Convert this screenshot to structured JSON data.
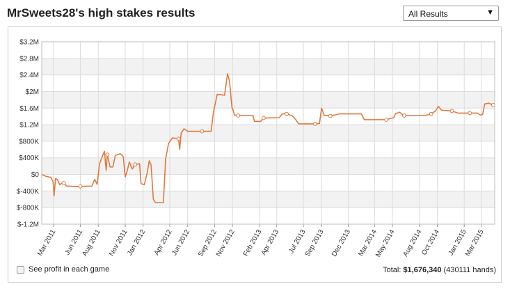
{
  "header": {
    "title": "MrSweets28's high stakes results"
  },
  "filter": {
    "selected": "All Results",
    "arrow_icon": "triangle-down-icon"
  },
  "footer": {
    "checkbox_label": "See profit in each game",
    "total_label": "Total:",
    "total_value": "$1,676,340",
    "hands": "(430111 hands)"
  },
  "colors": {
    "line": "#e07a3f",
    "grid": "#dcdcdc",
    "band": "#f2f2f2"
  },
  "chart_data": {
    "type": "line",
    "title": "",
    "xlabel": "",
    "ylabel": "",
    "ylim": [
      -1200000,
      3200000
    ],
    "yticks": [
      {
        "value": 3200000,
        "label": "$3.2M"
      },
      {
        "value": 2800000,
        "label": "$2.8M"
      },
      {
        "value": 2400000,
        "label": "$2.4M"
      },
      {
        "value": 2000000,
        "label": "$2M"
      },
      {
        "value": 1600000,
        "label": "$1.6M"
      },
      {
        "value": 1200000,
        "label": "$1.2M"
      },
      {
        "value": 800000,
        "label": "$800K"
      },
      {
        "value": 400000,
        "label": "$400K"
      },
      {
        "value": 0,
        "label": "$0"
      },
      {
        "value": -400000,
        "label": "$-400K"
      },
      {
        "value": -800000,
        "label": "$-800K"
      },
      {
        "value": -1200000,
        "label": "$-1.2M"
      }
    ],
    "xlim": [
      "2011-01-20",
      "2015-04-15"
    ],
    "xticks": [
      {
        "date": "2011-03-01",
        "label": "Mar 2011"
      },
      {
        "date": "2011-06-01",
        "label": "Jun 2011"
      },
      {
        "date": "2011-08-01",
        "label": "Aug 2011"
      },
      {
        "date": "2011-11-01",
        "label": "Nov 2011"
      },
      {
        "date": "2012-01-01",
        "label": "Jan 2012"
      },
      {
        "date": "2012-04-01",
        "label": "Apr 2012"
      },
      {
        "date": "2012-06-01",
        "label": "Jun 2012"
      },
      {
        "date": "2012-09-01",
        "label": "Sep 2012"
      },
      {
        "date": "2012-11-01",
        "label": "Nov 2012"
      },
      {
        "date": "2013-02-01",
        "label": "Feb 2013"
      },
      {
        "date": "2013-04-01",
        "label": "Apr 2013"
      },
      {
        "date": "2013-07-01",
        "label": "Jul 2013"
      },
      {
        "date": "2013-09-01",
        "label": "Sep 2013"
      },
      {
        "date": "2013-12-01",
        "label": "Dec 2013"
      },
      {
        "date": "2014-03-01",
        "label": "Mar 2014"
      },
      {
        "date": "2014-05-01",
        "label": "May 2014"
      },
      {
        "date": "2014-08-01",
        "label": "Aug 2014"
      },
      {
        "date": "2014-10-01",
        "label": "Oct 2014"
      },
      {
        "date": "2015-01-01",
        "label": "Jan 2015"
      },
      {
        "date": "2015-03-01",
        "label": "Mar 2015"
      }
    ],
    "grid": true,
    "series": [
      {
        "markers": [
          "2011-04-05",
          "2011-06-01",
          "2011-09-01",
          "2011-12-05",
          "2012-05-01",
          "2012-07-20",
          "2012-11-20",
          "2013-02-15",
          "2013-05-05",
          "2013-08-10",
          "2013-10-01",
          "2014-04-10",
          "2014-06-10",
          "2014-09-10",
          "2014-11-20",
          "2015-01-20",
          "2015-04-10"
        ],
        "points": [
          {
            "x": "2011-01-20",
            "y": 0
          },
          {
            "x": "2011-02-05",
            "y": -50000
          },
          {
            "x": "2011-02-20",
            "y": -70000
          },
          {
            "x": "2011-02-28",
            "y": -180000
          },
          {
            "x": "2011-03-03",
            "y": -520000
          },
          {
            "x": "2011-03-08",
            "y": -100000
          },
          {
            "x": "2011-03-15",
            "y": -120000
          },
          {
            "x": "2011-03-22",
            "y": -250000
          },
          {
            "x": "2011-04-01",
            "y": -200000
          },
          {
            "x": "2011-04-05",
            "y": -210000
          },
          {
            "x": "2011-04-15",
            "y": -280000
          },
          {
            "x": "2011-05-10",
            "y": -290000
          },
          {
            "x": "2011-06-01",
            "y": -290000
          },
          {
            "x": "2011-07-10",
            "y": -280000
          },
          {
            "x": "2011-07-20",
            "y": -120000
          },
          {
            "x": "2011-07-28",
            "y": -240000
          },
          {
            "x": "2011-08-05",
            "y": 250000
          },
          {
            "x": "2011-08-15",
            "y": 440000
          },
          {
            "x": "2011-08-22",
            "y": 560000
          },
          {
            "x": "2011-08-28",
            "y": 100000
          },
          {
            "x": "2011-09-01",
            "y": 480000
          },
          {
            "x": "2011-09-10",
            "y": 180000
          },
          {
            "x": "2011-09-20",
            "y": 180000
          },
          {
            "x": "2011-09-28",
            "y": 460000
          },
          {
            "x": "2011-10-15",
            "y": 500000
          },
          {
            "x": "2011-10-25",
            "y": 430000
          },
          {
            "x": "2011-11-01",
            "y": -60000
          },
          {
            "x": "2011-11-08",
            "y": 100000
          },
          {
            "x": "2011-11-15",
            "y": 300000
          },
          {
            "x": "2011-11-25",
            "y": 130000
          },
          {
            "x": "2011-12-05",
            "y": 240000
          },
          {
            "x": "2011-12-20",
            "y": 260000
          },
          {
            "x": "2011-12-25",
            "y": -220000
          },
          {
            "x": "2012-01-05",
            "y": -250000
          },
          {
            "x": "2012-01-15",
            "y": 40000
          },
          {
            "x": "2012-01-22",
            "y": 330000
          },
          {
            "x": "2012-01-28",
            "y": 230000
          },
          {
            "x": "2012-02-05",
            "y": -600000
          },
          {
            "x": "2012-02-12",
            "y": -680000
          },
          {
            "x": "2012-03-10",
            "y": -680000
          },
          {
            "x": "2012-03-18",
            "y": 380000
          },
          {
            "x": "2012-03-28",
            "y": 750000
          },
          {
            "x": "2012-04-10",
            "y": 880000
          },
          {
            "x": "2012-05-01",
            "y": 860000
          },
          {
            "x": "2012-05-05",
            "y": 600000
          },
          {
            "x": "2012-05-10",
            "y": 1000000
          },
          {
            "x": "2012-05-20",
            "y": 1100000
          },
          {
            "x": "2012-06-01",
            "y": 1040000
          },
          {
            "x": "2012-07-20",
            "y": 1040000
          },
          {
            "x": "2012-08-20",
            "y": 1040000
          },
          {
            "x": "2012-08-28",
            "y": 1500000
          },
          {
            "x": "2012-09-10",
            "y": 1930000
          },
          {
            "x": "2012-10-05",
            "y": 1910000
          },
          {
            "x": "2012-10-15",
            "y": 2430000
          },
          {
            "x": "2012-10-22",
            "y": 2250000
          },
          {
            "x": "2012-10-30",
            "y": 1620000
          },
          {
            "x": "2012-11-03",
            "y": 1550000
          },
          {
            "x": "2012-11-08",
            "y": 1430000
          },
          {
            "x": "2012-11-20",
            "y": 1420000
          },
          {
            "x": "2013-01-10",
            "y": 1420000
          },
          {
            "x": "2013-01-15",
            "y": 1280000
          },
          {
            "x": "2013-02-05",
            "y": 1280000
          },
          {
            "x": "2013-02-15",
            "y": 1360000
          },
          {
            "x": "2013-04-10",
            "y": 1370000
          },
          {
            "x": "2013-04-20",
            "y": 1460000
          },
          {
            "x": "2013-05-05",
            "y": 1460000
          },
          {
            "x": "2013-05-25",
            "y": 1410000
          },
          {
            "x": "2013-06-05",
            "y": 1320000
          },
          {
            "x": "2013-06-15",
            "y": 1220000
          },
          {
            "x": "2013-08-10",
            "y": 1220000
          },
          {
            "x": "2013-08-25",
            "y": 1230000
          },
          {
            "x": "2013-09-01",
            "y": 1600000
          },
          {
            "x": "2013-09-10",
            "y": 1430000
          },
          {
            "x": "2013-10-01",
            "y": 1410000
          },
          {
            "x": "2013-11-01",
            "y": 1460000
          },
          {
            "x": "2014-01-15",
            "y": 1460000
          },
          {
            "x": "2014-01-25",
            "y": 1320000
          },
          {
            "x": "2014-03-20",
            "y": 1320000
          },
          {
            "x": "2014-04-10",
            "y": 1320000
          },
          {
            "x": "2014-05-05",
            "y": 1370000
          },
          {
            "x": "2014-05-12",
            "y": 1470000
          },
          {
            "x": "2014-05-25",
            "y": 1500000
          },
          {
            "x": "2014-06-10",
            "y": 1420000
          },
          {
            "x": "2014-08-20",
            "y": 1420000
          },
          {
            "x": "2014-09-10",
            "y": 1460000
          },
          {
            "x": "2014-09-25",
            "y": 1530000
          },
          {
            "x": "2014-10-05",
            "y": 1640000
          },
          {
            "x": "2014-10-15",
            "y": 1550000
          },
          {
            "x": "2014-11-20",
            "y": 1530000
          },
          {
            "x": "2014-12-10",
            "y": 1480000
          },
          {
            "x": "2015-01-20",
            "y": 1480000
          },
          {
            "x": "2015-02-15",
            "y": 1480000
          },
          {
            "x": "2015-02-25",
            "y": 1430000
          },
          {
            "x": "2015-03-05",
            "y": 1450000
          },
          {
            "x": "2015-03-12",
            "y": 1700000
          },
          {
            "x": "2015-03-25",
            "y": 1720000
          },
          {
            "x": "2015-04-10",
            "y": 1676340
          }
        ]
      }
    ]
  }
}
